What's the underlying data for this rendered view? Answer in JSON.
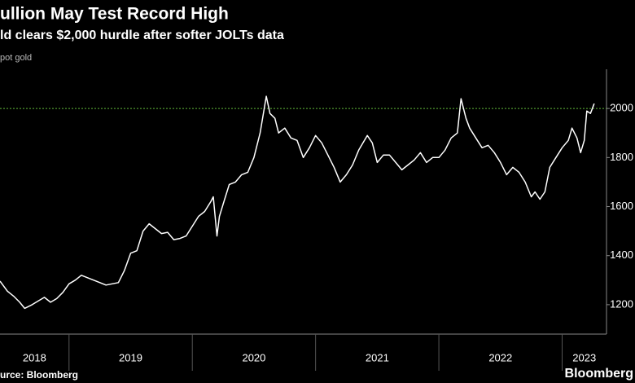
{
  "chart_data": {
    "type": "line",
    "title": "ullion May Test Record High",
    "subtitle": "ld clears $2,000 hurdle after softer JOLTs data",
    "y_axis_label": "pot gold",
    "source": "urce: Bloomberg",
    "brand": "Bloomberg",
    "x": [
      2018.44,
      2018.5,
      2018.55,
      2018.6,
      2018.64,
      2018.7,
      2018.75,
      2018.8,
      2018.85,
      2018.9,
      2018.95,
      2019.0,
      2019.05,
      2019.1,
      2019.15,
      2019.2,
      2019.25,
      2019.3,
      2019.35,
      2019.4,
      2019.45,
      2019.5,
      2019.55,
      2019.6,
      2019.65,
      2019.7,
      2019.75,
      2019.8,
      2019.85,
      2019.9,
      2019.95,
      2020.0,
      2020.05,
      2020.1,
      2020.15,
      2020.17,
      2020.2,
      2020.22,
      2020.25,
      2020.3,
      2020.35,
      2020.4,
      2020.45,
      2020.5,
      2020.55,
      2020.6,
      2020.63,
      2020.67,
      2020.7,
      2020.75,
      2020.8,
      2020.85,
      2020.9,
      2020.95,
      2021.0,
      2021.05,
      2021.1,
      2021.15,
      2021.2,
      2021.25,
      2021.3,
      2021.35,
      2021.42,
      2021.46,
      2021.5,
      2021.55,
      2021.6,
      2021.65,
      2021.7,
      2021.75,
      2021.8,
      2021.85,
      2021.9,
      2021.95,
      2022.0,
      2022.05,
      2022.1,
      2022.15,
      2022.18,
      2022.22,
      2022.25,
      2022.3,
      2022.35,
      2022.4,
      2022.45,
      2022.5,
      2022.55,
      2022.6,
      2022.65,
      2022.7,
      2022.75,
      2022.78,
      2022.82,
      2022.86,
      2022.9,
      2022.95,
      2023.0,
      2023.05,
      2023.08,
      2023.12,
      2023.15,
      2023.18,
      2023.2,
      2023.23,
      2023.26
    ],
    "series": [
      {
        "name": "Spot gold",
        "color": "#ffffff",
        "values": [
          1296,
          1255,
          1235,
          1210,
          1185,
          1200,
          1215,
          1230,
          1210,
          1225,
          1250,
          1285,
          1300,
          1320,
          1310,
          1300,
          1290,
          1280,
          1285,
          1290,
          1340,
          1410,
          1420,
          1500,
          1530,
          1510,
          1490,
          1495,
          1465,
          1470,
          1480,
          1520,
          1560,
          1580,
          1620,
          1640,
          1480,
          1560,
          1610,
          1690,
          1700,
          1730,
          1740,
          1800,
          1900,
          2050,
          1980,
          1960,
          1900,
          1920,
          1880,
          1870,
          1800,
          1840,
          1890,
          1860,
          1810,
          1760,
          1700,
          1730,
          1770,
          1830,
          1890,
          1860,
          1780,
          1810,
          1810,
          1780,
          1750,
          1770,
          1790,
          1820,
          1780,
          1800,
          1800,
          1830,
          1880,
          1900,
          2040,
          1960,
          1920,
          1880,
          1840,
          1850,
          1820,
          1780,
          1730,
          1760,
          1740,
          1700,
          1640,
          1660,
          1630,
          1660,
          1760,
          1800,
          1840,
          1870,
          1920,
          1880,
          1820,
          1870,
          1990,
          1980,
          2020
        ]
      }
    ],
    "xlim": [
      2018.44,
      2023.36
    ],
    "xticks": [
      {
        "value": 2018,
        "label": "2018"
      },
      {
        "value": 2019,
        "label": "2019"
      },
      {
        "value": 2020,
        "label": "2020"
      },
      {
        "value": 2021,
        "label": "2021"
      },
      {
        "value": 2022,
        "label": "2022"
      },
      {
        "value": 2023,
        "label": "2023"
      }
    ],
    "ylim": [
      1080,
      2160
    ],
    "yticks": [
      1200,
      1400,
      1600,
      1800,
      2000
    ],
    "reference_line": {
      "value": 2000,
      "color": "#5fb83a"
    },
    "grid": false,
    "background": "#000000"
  }
}
